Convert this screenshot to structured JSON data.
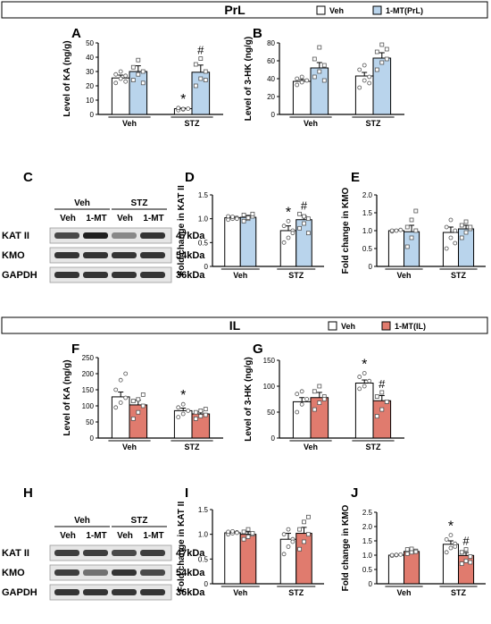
{
  "colors": {
    "veh": "#ffffff",
    "mt_prl": "#b9d4ec",
    "mt_il": "#e07b6e",
    "axis": "#000000",
    "blot_dark": "#1c1c1c"
  },
  "prl": {
    "title": "PrL",
    "legend": [
      "Veh",
      "1-MT(PrL)"
    ]
  },
  "il": {
    "title": "IL",
    "legend": [
      "Veh",
      "1-MT(IL)"
    ]
  },
  "panel_letters": [
    "A",
    "B",
    "C",
    "D",
    "E",
    "F",
    "G",
    "H",
    "I",
    "J"
  ],
  "blot_prl": {
    "group_labels": [
      "Veh",
      "STZ"
    ],
    "lane_labels": [
      "Veh",
      "1-MT",
      "Veh",
      "1-MT"
    ],
    "rows": [
      {
        "name": "KAT II",
        "kda": "47kDa",
        "intensity": [
          0.75,
          0.95,
          0.45,
          0.85
        ]
      },
      {
        "name": "KMO",
        "kda": "54kDa",
        "intensity": [
          0.85,
          0.85,
          0.85,
          0.85
        ]
      },
      {
        "name": "GAPDH",
        "kda": "36kDa",
        "intensity": [
          0.85,
          0.85,
          0.85,
          0.85
        ]
      }
    ]
  },
  "blot_il": {
    "group_labels": [
      "Veh",
      "STZ"
    ],
    "lane_labels": [
      "Veh",
      "1-MT",
      "Veh",
      "1-MT"
    ],
    "rows": [
      {
        "name": "KAT II",
        "kda": "47kDa",
        "intensity": [
          0.8,
          0.8,
          0.75,
          0.8
        ]
      },
      {
        "name": "KMO",
        "kda": "54kDa",
        "intensity": [
          0.8,
          0.55,
          0.85,
          0.75
        ]
      },
      {
        "name": "GAPDH",
        "kda": "36kDa",
        "intensity": [
          0.85,
          0.85,
          0.85,
          0.85
        ]
      }
    ]
  },
  "chart_data": [
    {
      "id": "A",
      "type": "bar",
      "ylabel": "Level of KA (ng/g)",
      "categories": [
        "Veh",
        "STZ"
      ],
      "ylim": [
        0,
        50
      ],
      "yticks": [
        0,
        10,
        20,
        30,
        40,
        50
      ],
      "series": [
        {
          "name": "Veh",
          "values": [
            25.5,
            4
          ]
        },
        {
          "name": "1-MT(PrL)",
          "values": [
            30,
            29.5
          ]
        }
      ],
      "errors": [
        [
          2,
          0.5
        ],
        [
          4,
          5
        ]
      ],
      "points": [
        [
          [
            22,
            25,
            27,
            28,
            30,
            23
          ],
          [
            3,
            3.5,
            4,
            4.5,
            3.8
          ]
        ],
        [
          [
            24,
            28,
            30,
            33,
            38,
            22
          ],
          [
            20,
            25,
            30,
            35,
            39,
            24
          ]
        ]
      ],
      "marks": [
        {
          "series": 0,
          "category": 1,
          "symbol": "*"
        },
        {
          "series": 1,
          "category": 1,
          "symbol": "#"
        }
      ]
    },
    {
      "id": "B",
      "type": "bar",
      "ylabel": "Level of 3-HK (ng/g)",
      "categories": [
        "Veh",
        "STZ"
      ],
      "ylim": [
        0,
        80
      ],
      "yticks": [
        0,
        20,
        40,
        60,
        80
      ],
      "series": [
        {
          "name": "Veh",
          "values": [
            37,
            43
          ]
        },
        {
          "name": "1-MT(PrL)",
          "values": [
            52,
            63
          ]
        }
      ],
      "errors": [
        [
          2,
          4
        ],
        [
          6,
          6
        ]
      ],
      "points": [
        [
          [
            33,
            36,
            38,
            40,
            42
          ],
          [
            30,
            38,
            42,
            50,
            55,
            35
          ]
        ],
        [
          [
            42,
            48,
            55,
            62,
            75,
            38
          ],
          [
            50,
            58,
            62,
            70,
            78,
            73
          ]
        ]
      ],
      "marks": []
    },
    {
      "id": "D",
      "type": "bar",
      "ylabel": "Fold change in KAT II",
      "categories": [
        "Veh",
        "STZ"
      ],
      "ylim": [
        0,
        1.5
      ],
      "yticks": [
        0,
        0.5,
        1.0,
        1.5
      ],
      "series": [
        {
          "name": "Veh",
          "values": [
            1.02,
            0.75
          ]
        },
        {
          "name": "1-MT(PrL)",
          "values": [
            1.03,
            0.98
          ]
        }
      ],
      "errors": [
        [
          0.03,
          0.1
        ],
        [
          0.04,
          0.08
        ]
      ],
      "points": [
        [
          [
            0.98,
            1.0,
            1.02,
            1.05,
            1.04,
            1.0
          ],
          [
            0.5,
            0.6,
            0.75,
            0.85,
            0.95,
            0.7
          ]
        ],
        [
          [
            0.95,
            1.0,
            1.05,
            1.08,
            1.02,
            1.1
          ],
          [
            0.8,
            0.9,
            1.0,
            1.1,
            1.05,
            0.7
          ]
        ]
      ],
      "marks": [
        {
          "series": 0,
          "category": 1,
          "symbol": "*"
        },
        {
          "series": 1,
          "category": 1,
          "symbol": "#"
        }
      ]
    },
    {
      "id": "E",
      "type": "bar",
      "ylabel": "Fold change in KMO",
      "categories": [
        "Veh",
        "STZ"
      ],
      "ylim": [
        0,
        2.0
      ],
      "yticks": [
        0,
        0.5,
        1.0,
        1.5,
        2.0
      ],
      "series": [
        {
          "name": "Veh",
          "values": [
            1.0,
            0.95
          ]
        },
        {
          "name": "1-MT(PrL)",
          "values": [
            0.97,
            1.05
          ]
        }
      ],
      "errors": [
        [
          0.02,
          0.15
        ],
        [
          0.18,
          0.1
        ]
      ],
      "points": [
        [
          [
            0.98,
            1.0,
            1.02,
            1.0
          ],
          [
            0.5,
            0.8,
            1.0,
            1.1,
            1.3,
            0.65
          ]
        ],
        [
          [
            0.55,
            0.8,
            1.0,
            1.1,
            1.3,
            1.55
          ],
          [
            0.8,
            0.95,
            1.05,
            1.15,
            1.25,
            1.1
          ]
        ]
      ],
      "marks": []
    },
    {
      "id": "F",
      "type": "bar",
      "ylabel": "Level of KA (ng/g)",
      "categories": [
        "Veh",
        "STZ"
      ],
      "ylim": [
        0,
        250
      ],
      "yticks": [
        0,
        50,
        100,
        150,
        200,
        250
      ],
      "series": [
        {
          "name": "Veh",
          "values": [
            128,
            85
          ]
        },
        {
          "name": "1-MT(IL)",
          "values": [
            103,
            75
          ]
        }
      ],
      "errors": [
        [
          15,
          8
        ],
        [
          15,
          6
        ]
      ],
      "points": [
        [
          [
            95,
            110,
            125,
            150,
            180,
            200
          ],
          [
            65,
            75,
            85,
            95,
            105
          ]
        ],
        [
          [
            60,
            80,
            100,
            115,
            120,
            135
          ],
          [
            60,
            68,
            72,
            80,
            85,
            90
          ]
        ]
      ],
      "marks": [
        {
          "series": 0,
          "category": 1,
          "symbol": "*"
        }
      ]
    },
    {
      "id": "G",
      "type": "bar",
      "ylabel": "Level of 3-HK (ng/g)",
      "categories": [
        "Veh",
        "STZ"
      ],
      "ylim": [
        0,
        150
      ],
      "yticks": [
        0,
        50,
        100,
        150
      ],
      "series": [
        {
          "name": "Veh",
          "values": [
            70,
            106
          ]
        },
        {
          "name": "1-MT(IL)",
          "values": [
            78,
            72
          ]
        }
      ],
      "errors": [
        [
          8,
          6
        ],
        [
          10,
          10
        ]
      ],
      "points": [
        [
          [
            50,
            65,
            75,
            85,
            90
          ],
          [
            95,
            100,
            110,
            118,
            125
          ]
        ],
        [
          [
            55,
            68,
            80,
            90,
            100,
            75
          ],
          [
            42,
            55,
            70,
            80,
            88,
            70
          ]
        ]
      ],
      "marks": [
        {
          "series": 0,
          "category": 1,
          "symbol": "*"
        },
        {
          "series": 1,
          "category": 1,
          "symbol": "#"
        }
      ]
    },
    {
      "id": "I",
      "type": "bar",
      "ylabel": "Fold change in KAT II",
      "categories": [
        "Veh",
        "STZ"
      ],
      "ylim": [
        0,
        1.5
      ],
      "yticks": [
        0,
        0.5,
        1.0,
        1.5
      ],
      "series": [
        {
          "name": "Veh",
          "values": [
            1.03,
            0.9
          ]
        },
        {
          "name": "1-MT(IL)",
          "values": [
            1.0,
            1.02
          ]
        }
      ],
      "errors": [
        [
          0.02,
          0.12
        ],
        [
          0.05,
          0.12
        ]
      ],
      "points": [
        [
          [
            1.0,
            1.02,
            1.04,
            1.05,
            1.06,
            1.03
          ],
          [
            0.6,
            0.75,
            0.9,
            1.0,
            1.1,
            0.85
          ]
        ],
        [
          [
            0.9,
            0.95,
            1.0,
            1.05,
            1.1,
            1.02
          ],
          [
            0.7,
            0.85,
            1.0,
            1.1,
            1.25,
            1.35
          ]
        ]
      ],
      "marks": []
    },
    {
      "id": "J",
      "type": "bar",
      "ylabel": "Fold change in KMO",
      "categories": [
        "Veh",
        "STZ"
      ],
      "ylim": [
        0,
        2.5
      ],
      "yticks": [
        0,
        0.5,
        1.0,
        1.5,
        2.0,
        2.5
      ],
      "series": [
        {
          "name": "Veh",
          "values": [
            1.0,
            1.38
          ]
        },
        {
          "name": "1-MT(IL)",
          "values": [
            1.13,
            0.99
          ]
        }
      ],
      "errors": [
        [
          0.02,
          0.12
        ],
        [
          0.05,
          0.1
        ]
      ],
      "points": [
        [
          [
            0.98,
            1.0,
            1.02,
            1.0,
            1.01
          ],
          [
            1.1,
            1.25,
            1.4,
            1.55,
            1.7,
            1.3
          ]
        ],
        [
          [
            1.05,
            1.1,
            1.15,
            1.2,
            1.22,
            1.12
          ],
          [
            0.7,
            0.8,
            0.95,
            1.1,
            1.2,
            0.75
          ]
        ]
      ],
      "marks": [
        {
          "series": 0,
          "category": 1,
          "symbol": "*"
        },
        {
          "series": 1,
          "category": 1,
          "symbol": "#"
        }
      ]
    }
  ]
}
